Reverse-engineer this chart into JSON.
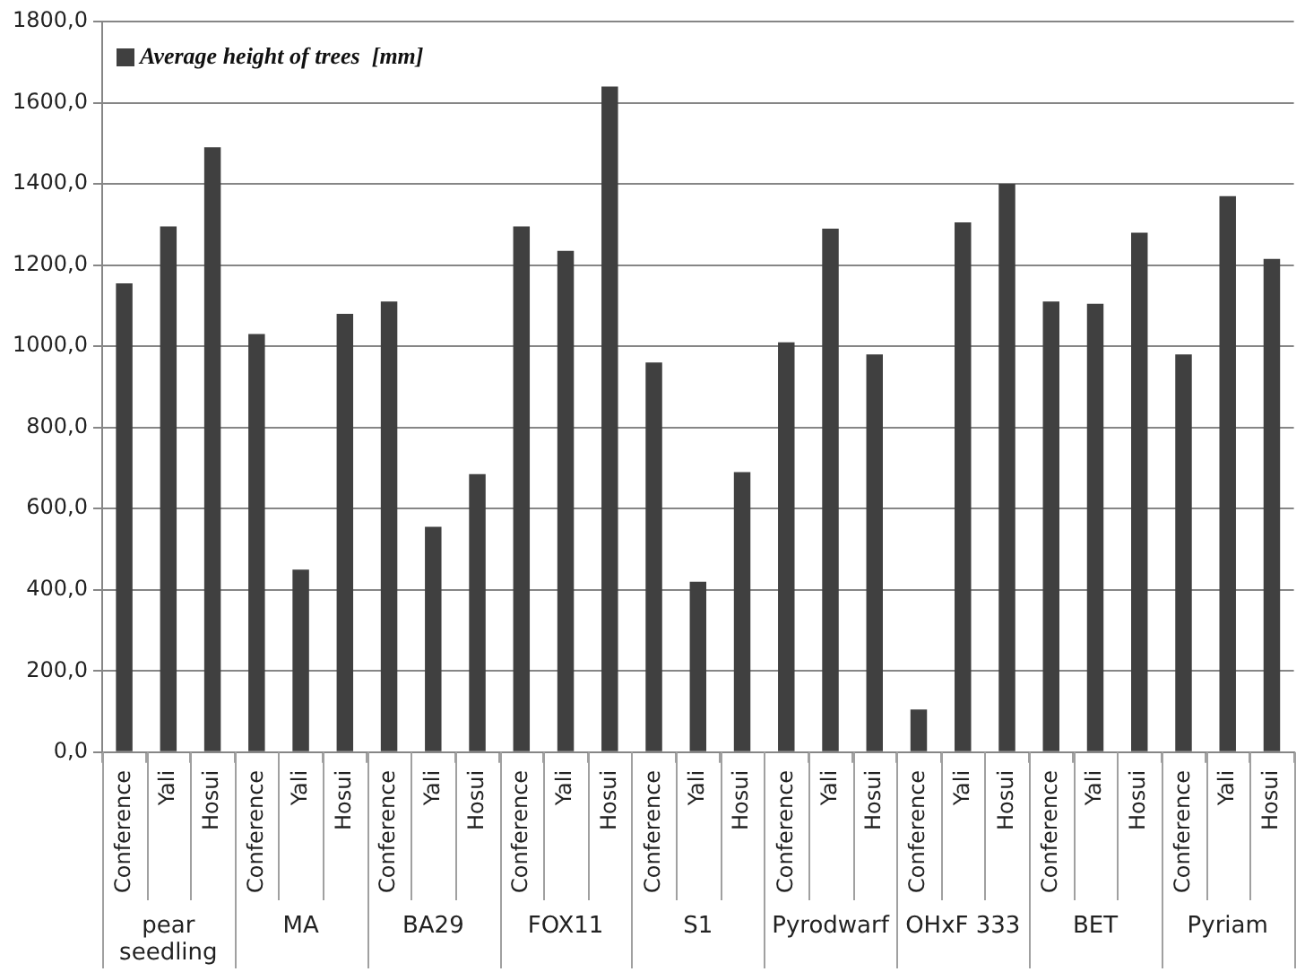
{
  "chart_data": {
    "type": "bar",
    "categories": [
      "Conference",
      "Yali",
      "Hosui",
      "Conference",
      "Yali",
      "Hosui",
      "Conference",
      "Yali",
      "Hosui",
      "Conference",
      "Yali",
      "Hosui",
      "Conference",
      "Yali",
      "Hosui",
      "Conference",
      "Yali",
      "Hosui",
      "Conference",
      "Yali",
      "Hosui",
      "Conference",
      "Yali",
      "Hosui",
      "Conference",
      "Yali",
      "Hosui"
    ],
    "series": [
      {
        "name": "Average height of trees  [mm]",
        "color": "#404040",
        "values": [
          1155,
          1295,
          1490,
          1030,
          450,
          1080,
          1110,
          555,
          685,
          1295,
          1235,
          1640,
          960,
          420,
          690,
          1010,
          1290,
          980,
          105,
          1305,
          1400,
          1110,
          1105,
          1280,
          980,
          1370,
          1215
        ]
      }
    ],
    "annotations": [
      "pear seedling",
      "MA",
      "BA29",
      "FOX11",
      "S1",
      "Pyrodwarf",
      "OHxF 333",
      "BET",
      "Pyriam"
    ],
    "ylim": [
      0,
      1800
    ],
    "yticks": [
      {
        "value": 0,
        "label": "0,0"
      },
      {
        "value": 200,
        "label": "200,0"
      },
      {
        "value": 400,
        "label": "400,0"
      },
      {
        "value": 600,
        "label": "600,0"
      },
      {
        "value": 800,
        "label": "800,0"
      },
      {
        "value": 1000,
        "label": "1000,0"
      },
      {
        "value": 1200,
        "label": "1200,0"
      },
      {
        "value": 1400,
        "label": "1400,0"
      },
      {
        "value": 1600,
        "label": "1600,0"
      },
      {
        "value": 1800,
        "label": "1800,0"
      }
    ],
    "grid": "y",
    "legend": "top left"
  }
}
